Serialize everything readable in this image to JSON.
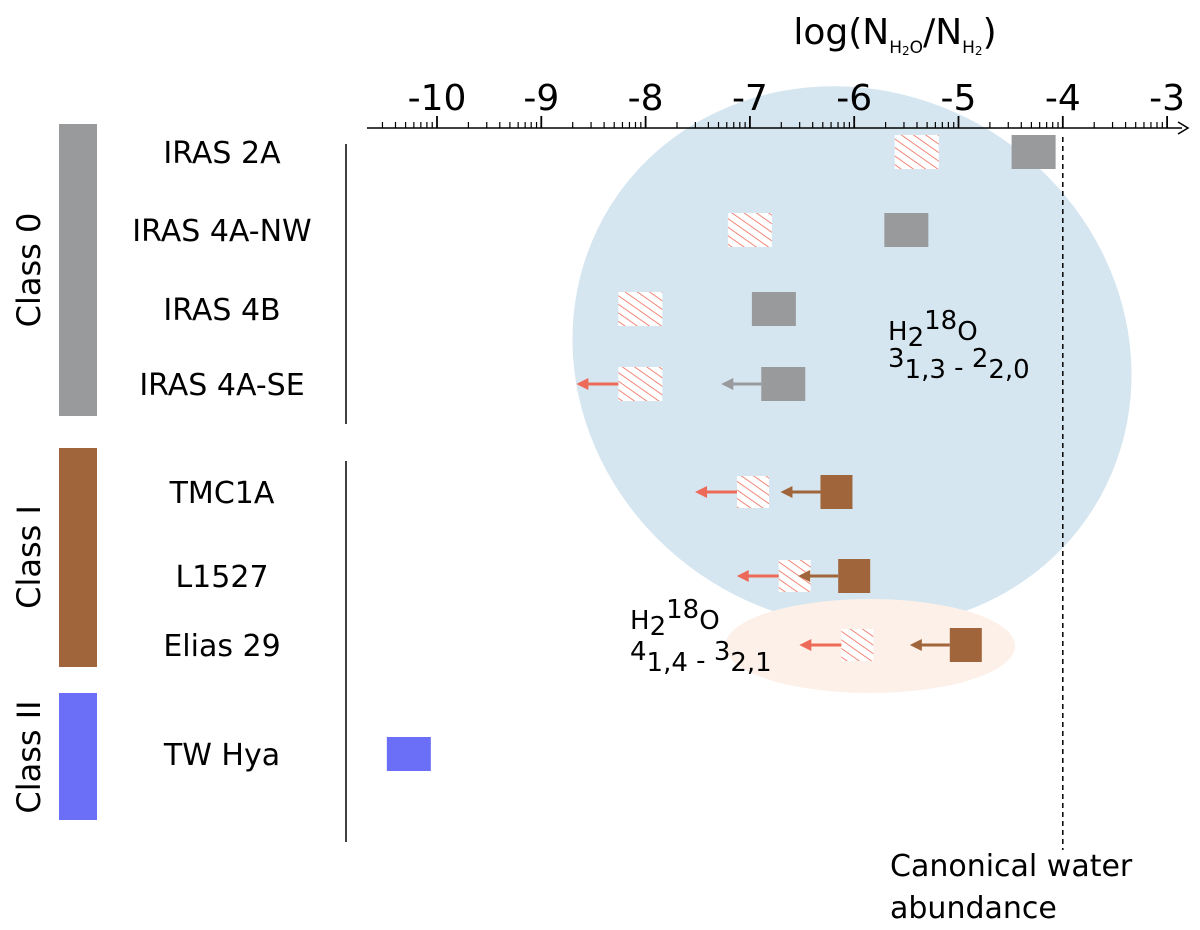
{
  "chart_data": {
    "type": "scatter",
    "title_parts": {
      "base": "log(N",
      "num_sub": "H",
      "num_sub2": "2",
      "num_sub3": "O",
      "sep": "/N",
      "den_sub": "H",
      "den_sub2": "2",
      "close": ")"
    },
    "x_ticks": [
      "-10",
      "-9",
      "-8",
      "-7",
      "-6",
      "-5",
      "-4",
      "-3"
    ],
    "xlim": [
      -10.7,
      -2.7
    ],
    "groups": [
      {
        "label": "Class 0",
        "color": "#999a9c",
        "sources": [
          "IRAS 2A",
          "IRAS 4A-NW",
          "IRAS 4B",
          "IRAS 4A-SE"
        ]
      },
      {
        "label": "Class I",
        "color": "#a0653a",
        "sources": [
          "TMC1A",
          "L1527",
          "Elias 29"
        ]
      },
      {
        "label": "Class II",
        "color": "#6b6ff7",
        "sources": [
          "TW Hya"
        ]
      }
    ],
    "solid_points": [
      {
        "source": "IRAS 2A",
        "x": -4.28,
        "upper_limit": false,
        "color": "#999a9c"
      },
      {
        "source": "IRAS 4A-NW",
        "x": -5.5,
        "upper_limit": false,
        "color": "#999a9c"
      },
      {
        "source": "IRAS 4B",
        "x": -6.77,
        "upper_limit": false,
        "color": "#999a9c"
      },
      {
        "source": "IRAS 4A-SE",
        "x": -6.68,
        "upper_limit": true,
        "color": "#999a9c"
      },
      {
        "source": "TMC1A",
        "x": -6.17,
        "upper_limit": true,
        "color": "#a0653a"
      },
      {
        "source": "L1527",
        "x": -6.0,
        "upper_limit": true,
        "color": "#a0653a"
      },
      {
        "source": "Elias 29",
        "x": -4.93,
        "upper_limit": true,
        "color": "#a0653a"
      },
      {
        "source": "TW Hya",
        "x": -10.27,
        "upper_limit": false,
        "color": "#6b6ff7"
      }
    ],
    "hatched_points": [
      {
        "source": "IRAS 2A",
        "x": -5.4,
        "upper_limit": false
      },
      {
        "source": "IRAS 4A-NW",
        "x": -7.0,
        "upper_limit": false
      },
      {
        "source": "IRAS 4B",
        "x": -8.05,
        "upper_limit": false
      },
      {
        "source": "IRAS 4A-SE",
        "x": -8.05,
        "upper_limit": true
      },
      {
        "source": "TMC1A",
        "x": -6.97,
        "upper_limit": true
      },
      {
        "source": "L1527",
        "x": -6.57,
        "upper_limit": true
      },
      {
        "source": "Elias 29",
        "x": -5.97,
        "upper_limit": true
      }
    ],
    "hatch_color": "#ee6a58",
    "transition_labels": [
      {
        "species": "H",
        "sub": "2",
        "sup": "18",
        "tail": "O",
        "line": "3",
        "line_sub1": "1,3",
        "dash": " - ",
        "line2": "2",
        "line_sub2": "2,0"
      },
      {
        "species": "H",
        "sub": "2",
        "sup": "18",
        "tail": "O",
        "line": "4",
        "line_sub1": "1,4",
        "dash": " - ",
        "line2": "3",
        "line_sub2": "2,1"
      }
    ],
    "reference_line": {
      "x": -4.0,
      "label_line1": "Canonical water",
      "label_line2": "abundance"
    },
    "regions": [
      {
        "name": "blue-ellipse",
        "color": "#d5e6f1"
      },
      {
        "name": "peach-ellipse",
        "color": "#fdf0e8"
      }
    ]
  }
}
